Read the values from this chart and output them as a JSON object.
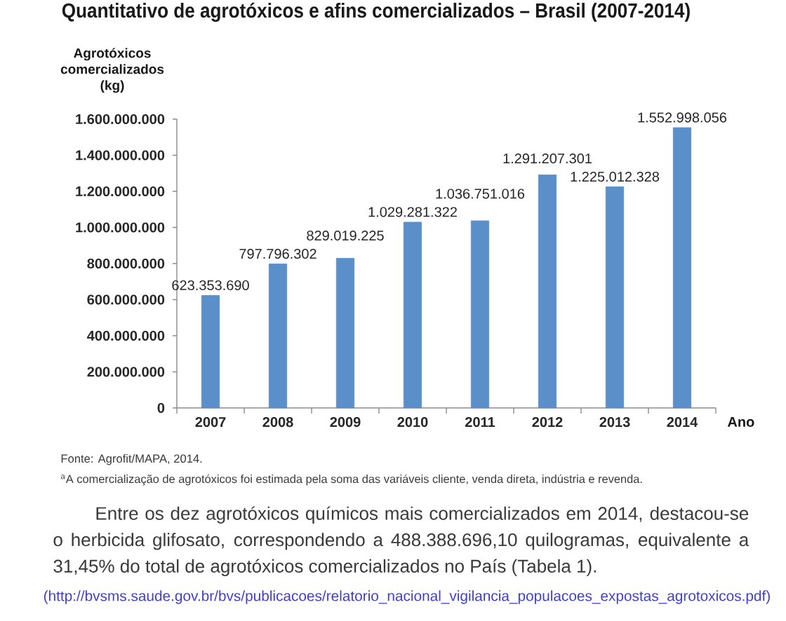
{
  "chart_data": {
    "type": "bar",
    "title": "Quantitativo de agrotóxicos e afins comercializados – Brasil (2007-2014)",
    "ylabel": "Agrotóxicos comercializados (kg)",
    "xlabel": "Ano",
    "categories": [
      "2007",
      "2008",
      "2009",
      "2010",
      "2011",
      "2012",
      "2013",
      "2014"
    ],
    "values": [
      623353690,
      797796302,
      829019225,
      1029281322,
      1036751016,
      1291207301,
      1225012328,
      1552998056
    ],
    "value_labels": [
      "623.353.690",
      "797.796.302",
      "829.019.225",
      "1.029.281.322",
      "1.036.751.016",
      "1.291.207.301",
      "1.225.012.328",
      "1.552.998.056"
    ],
    "color": "#5b8fc9",
    "ylim": [
      0,
      1600000000
    ],
    "yticks": [
      0,
      {
        "value": 200000000,
        "label": "200.000.000"
      },
      {
        "value": 400000000,
        "label": "400.000.000"
      },
      {
        "value": 600000000,
        "label": "600.000.000"
      },
      {
        "value": 800000000,
        "label": "800.000.000"
      },
      {
        "value": 1000000000,
        "label": "1.000.000.000"
      },
      {
        "value": 1200000000,
        "label": "1.200.000.000"
      },
      {
        "value": 1400000000,
        "label": "1.400.000.000"
      },
      {
        "value": 1600000000,
        "label": "1.600.000.000"
      }
    ],
    "annotations": [
      "Fonte: Agrofit/MAPA, 2014.",
      "$^{a}$A comercialização de agrotóxicos foi estimada pela soma das variáveis cliente, venda direta, indústria e revenda.",
      "Entre os dez agrotóxicos químicos mais comercializados em 2014, destacou-se o herbicida glifosato, correspondendo a 488.388.696,10 quilogramas, equivalente a 31,45% do total de agrotóxicos comercializados no País (Tabela 1).",
      "(http://bvsms.saude.gov.br/bvs/publicacoes/relatorio_nacional_vigilancia_populacoes_expostas_agrotoxicos.pdf)"
    ]
  }
}
